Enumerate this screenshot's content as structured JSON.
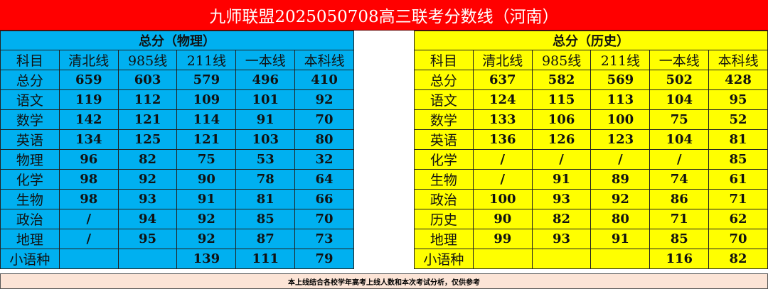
{
  "title": "九师联盟2025050708高三联考分数线（河南）",
  "physics": {
    "heading": "总分（物理）",
    "columns": [
      "科目",
      "清北线",
      "985线",
      "211线",
      "一本线",
      "本科线"
    ],
    "rows": [
      [
        "总分",
        "659",
        "603",
        "579",
        "496",
        "410"
      ],
      [
        "语文",
        "119",
        "112",
        "109",
        "101",
        "92"
      ],
      [
        "数学",
        "142",
        "121",
        "114",
        "91",
        "70"
      ],
      [
        "英语",
        "134",
        "125",
        "121",
        "103",
        "80"
      ],
      [
        "物理",
        "96",
        "82",
        "75",
        "53",
        "32"
      ],
      [
        "化学",
        "98",
        "92",
        "90",
        "78",
        "64"
      ],
      [
        "生物",
        "98",
        "93",
        "91",
        "81",
        "66"
      ],
      [
        "政治",
        "/",
        "94",
        "92",
        "85",
        "70"
      ],
      [
        "地理",
        "/",
        "95",
        "92",
        "87",
        "73"
      ],
      [
        "小语种",
        "",
        "",
        "139",
        "111",
        "79"
      ]
    ]
  },
  "history": {
    "heading": "总分（历史）",
    "columns": [
      "科目",
      "清北线",
      "985线",
      "211线",
      "一本线",
      "本科线"
    ],
    "rows": [
      [
        "总分",
        "637",
        "582",
        "569",
        "502",
        "428"
      ],
      [
        "语文",
        "124",
        "115",
        "113",
        "104",
        "95"
      ],
      [
        "数学",
        "133",
        "106",
        "100",
        "75",
        "52"
      ],
      [
        "英语",
        "136",
        "126",
        "123",
        "104",
        "81"
      ],
      [
        "化学",
        "/",
        "/",
        "/",
        "/",
        "85"
      ],
      [
        "生物",
        "/",
        "91",
        "89",
        "74",
        "61"
      ],
      [
        "政治",
        "100",
        "93",
        "92",
        "86",
        "71"
      ],
      [
        "历史",
        "90",
        "82",
        "80",
        "71",
        "62"
      ],
      [
        "地理",
        "99",
        "93",
        "91",
        "85",
        "70"
      ],
      [
        "小语种",
        "",
        "",
        "",
        "116",
        "82"
      ]
    ]
  },
  "footer": "本上线结合各校学年高考上线人数和本次考试分析，仅供参考",
  "colors": {
    "title_bg": "#ff0000",
    "physics_bg": "#00b0f0",
    "history_bg": "#ffff00",
    "footer_bg": "#fce4d6"
  }
}
